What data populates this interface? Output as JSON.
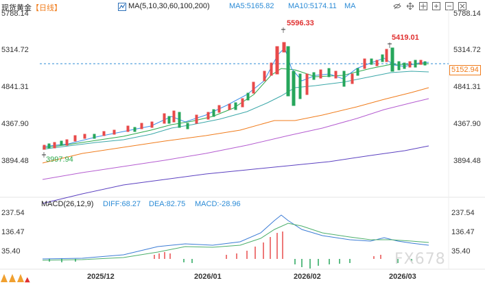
{
  "header": {
    "instrument": "现货黄金",
    "period": "【日线】",
    "ma_label": "MA(5,10,30,60,100,200)",
    "ma5": "MA5:5165.82",
    "ma10": "MA10:5174.11",
    "ma_more": "MA"
  },
  "main_axis": {
    "left": [
      "5788.14",
      "5314.72",
      "4841.31",
      "4367.90",
      "3894.48"
    ],
    "right": [
      "5788.14",
      "5314.72",
      "4841.31",
      "4367.90",
      "3894.48"
    ]
  },
  "current_price": "5152.94",
  "annotations": {
    "high1": "5596.33",
    "high2": "5419.01",
    "low": "3997.94"
  },
  "macd": {
    "label": "MACD(26,12,9)",
    "diff": "DIFF:68.27",
    "dea": "DEA:82.75",
    "macd": "MACD:-28.96",
    "axis_left": [
      "237.54",
      "136.47",
      "35.40"
    ],
    "axis_right": [
      "237.54",
      "136.47",
      "35.40"
    ]
  },
  "dates": [
    "2025/12",
    "2026/01",
    "2026/02",
    "2026/03"
  ],
  "watermark": "FX678",
  "colors": {
    "up": "#e84a4a",
    "down": "#26a65b",
    "ma5": "#3a8ee6",
    "ma_orange": "#f07b1a",
    "ma_purple": "#c466d6",
    "ma_violet": "#6a4bd0",
    "macd_diff": "#3a7bd5",
    "macd_dea": "#4aae6a"
  },
  "icons": [
    "eye-off-icon",
    "move-icon",
    "crosshair-icon",
    "expand-icon",
    "minimize-icon",
    "close-icon"
  ]
}
